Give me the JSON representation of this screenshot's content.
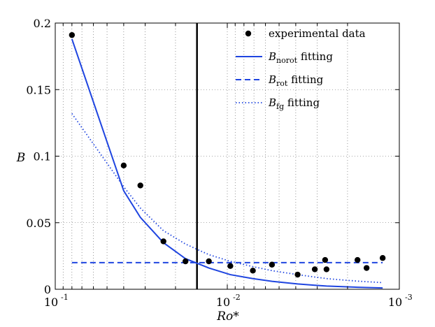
{
  "chart_data": {
    "type": "scatter",
    "title": "",
    "xlabel": "Ro*",
    "ylabel": "B",
    "xscale": "log",
    "x_reversed": true,
    "xlim": [
      0.1,
      0.001
    ],
    "ylim": [
      0,
      0.2
    ],
    "grid": "dotted",
    "legend_position": "top-right",
    "x_tick_labels": [
      {
        "base": "10",
        "exp": "-1",
        "value": 0.1
      },
      {
        "base": "10",
        "exp": "-2",
        "value": 0.01
      },
      {
        "base": "10",
        "exp": "-3",
        "value": 0.001
      }
    ],
    "y_ticks": [
      0,
      0.05,
      0.1,
      0.15,
      0.2
    ],
    "y_tick_labels": [
      "0",
      "0.05",
      "0.1",
      "0.15",
      "0.2"
    ],
    "vertical_line": {
      "x": 0.015,
      "color": "#000000"
    },
    "legend": [
      {
        "key": "experimental",
        "label": "experimental data",
        "name": "",
        "sub": "",
        "suffix": ""
      },
      {
        "key": "norot",
        "label": "",
        "name": "B",
        "sub": "norot",
        "suffix": " fitting"
      },
      {
        "key": "rot",
        "label": "",
        "name": "B",
        "sub": "rot",
        "suffix": " fitting"
      },
      {
        "key": "fg",
        "label": "",
        "name": "B",
        "sub": "fg",
        "suffix": " fitting"
      }
    ],
    "series": [
      {
        "key": "experimental",
        "name": "experimental data",
        "kind": "points",
        "color": "#000000",
        "x": [
          0.08,
          0.04,
          0.032,
          0.0235,
          0.0175,
          0.0128,
          0.0096,
          0.0071,
          0.0055,
          0.0039,
          0.0031,
          0.0027,
          0.00265,
          0.00175,
          0.00155,
          0.00125
        ],
        "y": [
          0.191,
          0.093,
          0.078,
          0.036,
          0.021,
          0.021,
          0.0175,
          0.014,
          0.0185,
          0.011,
          0.015,
          0.022,
          0.015,
          0.022,
          0.016,
          0.0235
        ]
      },
      {
        "key": "norot",
        "name": "B_norot fitting",
        "kind": "line",
        "dash": "solid",
        "color": "#1f45e0",
        "x": [
          0.08,
          0.04,
          0.032,
          0.0235,
          0.0175,
          0.0128,
          0.0096,
          0.0071,
          0.0055,
          0.0039,
          0.0031,
          0.0027,
          0.00265,
          0.00175,
          0.00155,
          0.00125
        ],
        "y": [
          0.188,
          0.074,
          0.054,
          0.035,
          0.023,
          0.016,
          0.011,
          0.008,
          0.006,
          0.004,
          0.003,
          0.0025,
          0.0024,
          0.0015,
          0.0013,
          0.001
        ]
      },
      {
        "key": "rot",
        "name": "B_rot fitting",
        "kind": "line",
        "dash": "dashed",
        "color": "#1f45e0",
        "x": [
          0.08,
          0.00125
        ],
        "y": [
          0.02,
          0.02
        ]
      },
      {
        "key": "fg",
        "name": "B_fg fitting",
        "kind": "line",
        "dash": "dotted",
        "color": "#1f45e0",
        "x": [
          0.08,
          0.04,
          0.032,
          0.0235,
          0.0175,
          0.0128,
          0.0096,
          0.0071,
          0.0055,
          0.0039,
          0.0031,
          0.0027,
          0.00265,
          0.00175,
          0.00155,
          0.00125
        ],
        "y": [
          0.132,
          0.077,
          0.061,
          0.044,
          0.034,
          0.026,
          0.021,
          0.017,
          0.014,
          0.011,
          0.0092,
          0.0082,
          0.008,
          0.0061,
          0.0057,
          0.005
        ]
      }
    ]
  }
}
